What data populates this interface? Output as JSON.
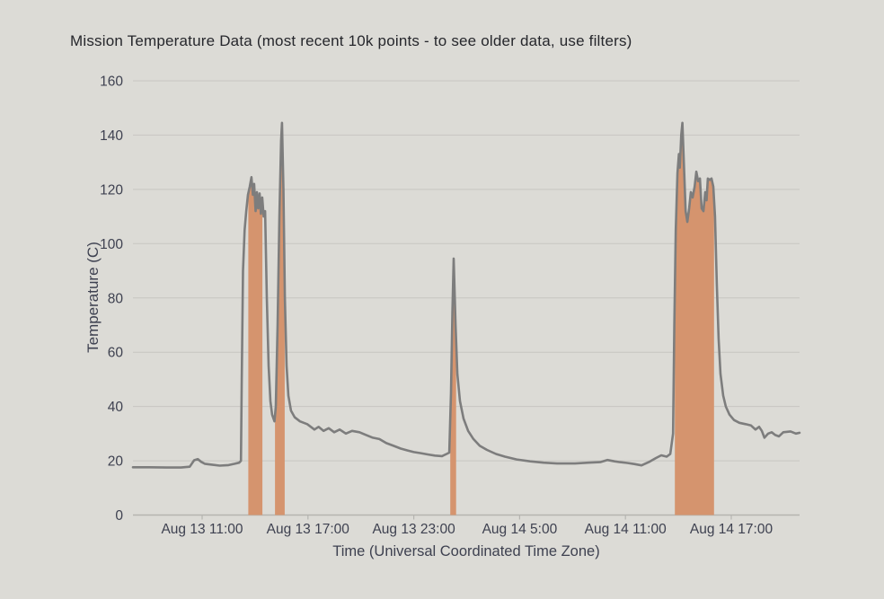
{
  "title": "Mission Temperature Data (most recent 10k points - to see older data, use filters)",
  "colors": {
    "background": "#dcdbd6",
    "line": "#7d7d7d",
    "highlight": "#d5946e",
    "grid": "#c7c6c1",
    "axis_line": "#b5b4b0",
    "tick_text": "#3e4150",
    "title_text": "#26272c"
  },
  "chart_data": {
    "type": "line",
    "title": "Mission Temperature Data (most recent 10k points - to see older data, use filters)",
    "xlabel": "Time (Universal Coordinated Time Zone)",
    "ylabel": "Temperature (C)",
    "ylim": [
      0,
      160
    ],
    "y_ticks": [
      0,
      20,
      40,
      60,
      80,
      100,
      120,
      140,
      160
    ],
    "x_ticks": [
      {
        "t": 11,
        "label": "Aug 13 11:00"
      },
      {
        "t": 17,
        "label": "Aug 13 17:00"
      },
      {
        "t": 23,
        "label": "Aug 13 23:00"
      },
      {
        "t": 29,
        "label": "Aug 14 5:00"
      },
      {
        "t": 35,
        "label": "Aug 14 11:00"
      },
      {
        "t": 41,
        "label": "Aug 14 17:00"
      }
    ],
    "x_unit": "hours since Aug 13 00:00 UTC",
    "x_range": [
      7.08,
      44.87
    ],
    "grid": "horizontal",
    "legend": "none",
    "series": [
      {
        "name": "temperature",
        "points": [
          [
            7.08,
            17.6
          ],
          [
            8.0,
            17.6
          ],
          [
            9.0,
            17.5
          ],
          [
            9.8,
            17.5
          ],
          [
            10.3,
            17.8
          ],
          [
            10.55,
            20.2
          ],
          [
            10.75,
            20.6
          ],
          [
            10.95,
            19.6
          ],
          [
            11.15,
            18.9
          ],
          [
            11.5,
            18.6
          ],
          [
            12.0,
            18.2
          ],
          [
            12.5,
            18.4
          ],
          [
            12.85,
            18.9
          ],
          [
            13.1,
            19.3
          ],
          [
            13.2,
            20.0
          ],
          [
            13.25,
            50.0
          ],
          [
            13.32,
            90.0
          ],
          [
            13.41,
            105.0
          ],
          [
            13.5,
            112.0
          ],
          [
            13.6,
            118.0
          ],
          [
            13.7,
            121.0
          ],
          [
            13.8,
            124.5
          ],
          [
            13.88,
            118.0
          ],
          [
            13.95,
            122.0
          ],
          [
            14.03,
            112.0
          ],
          [
            14.11,
            119.0
          ],
          [
            14.18,
            113.0
          ],
          [
            14.26,
            118.5
          ],
          [
            14.33,
            111.0
          ],
          [
            14.41,
            117.0
          ],
          [
            14.49,
            110.0
          ],
          [
            14.57,
            112.0
          ],
          [
            14.67,
            80.0
          ],
          [
            14.77,
            55.0
          ],
          [
            14.87,
            42.0
          ],
          [
            14.97,
            37.0
          ],
          [
            15.1,
            34.5
          ],
          [
            15.18,
            40.0
          ],
          [
            15.28,
            70.0
          ],
          [
            15.38,
            110.0
          ],
          [
            15.48,
            138.0
          ],
          [
            15.53,
            144.5
          ],
          [
            15.61,
            120.0
          ],
          [
            15.69,
            80.0
          ],
          [
            15.79,
            55.0
          ],
          [
            15.89,
            44.0
          ],
          [
            16.04,
            38.5
          ],
          [
            16.25,
            36.0
          ],
          [
            16.55,
            34.5
          ],
          [
            16.96,
            33.5
          ],
          [
            17.37,
            31.5
          ],
          [
            17.6,
            32.5
          ],
          [
            17.88,
            31.0
          ],
          [
            18.18,
            32.0
          ],
          [
            18.49,
            30.5
          ],
          [
            18.8,
            31.5
          ],
          [
            19.15,
            30.0
          ],
          [
            19.5,
            31.0
          ],
          [
            19.92,
            30.5
          ],
          [
            20.3,
            29.5
          ],
          [
            20.68,
            28.5
          ],
          [
            21.05,
            28.0
          ],
          [
            21.44,
            26.5
          ],
          [
            21.85,
            25.5
          ],
          [
            22.26,
            24.5
          ],
          [
            22.65,
            23.8
          ],
          [
            23.0,
            23.2
          ],
          [
            23.4,
            22.8
          ],
          [
            23.82,
            22.3
          ],
          [
            24.2,
            21.9
          ],
          [
            24.6,
            21.7
          ],
          [
            24.86,
            22.5
          ],
          [
            25.01,
            23.0
          ],
          [
            25.11,
            45.0
          ],
          [
            25.19,
            75.0
          ],
          [
            25.26,
            94.5
          ],
          [
            25.37,
            70.0
          ],
          [
            25.47,
            52.0
          ],
          [
            25.62,
            42.0
          ],
          [
            25.82,
            35.5
          ],
          [
            26.08,
            31.0
          ],
          [
            26.38,
            28.0
          ],
          [
            26.74,
            25.5
          ],
          [
            27.15,
            24.0
          ],
          [
            27.66,
            22.5
          ],
          [
            28.17,
            21.5
          ],
          [
            28.83,
            20.5
          ],
          [
            29.59,
            19.8
          ],
          [
            30.36,
            19.3
          ],
          [
            31.12,
            19.0
          ],
          [
            32.14,
            19.0
          ],
          [
            32.9,
            19.3
          ],
          [
            33.57,
            19.5
          ],
          [
            33.97,
            20.3
          ],
          [
            34.38,
            19.8
          ],
          [
            34.69,
            19.5
          ],
          [
            35.1,
            19.2
          ],
          [
            35.5,
            18.8
          ],
          [
            35.91,
            18.3
          ],
          [
            36.32,
            19.5
          ],
          [
            36.73,
            21.0
          ],
          [
            37.03,
            22.0
          ],
          [
            37.34,
            21.5
          ],
          [
            37.54,
            22.5
          ],
          [
            37.7,
            30.0
          ],
          [
            37.77,
            70.0
          ],
          [
            37.85,
            105.0
          ],
          [
            37.95,
            126.0
          ],
          [
            38.03,
            133.0
          ],
          [
            38.08,
            128.0
          ],
          [
            38.16,
            140.0
          ],
          [
            38.23,
            144.5
          ],
          [
            38.31,
            130.0
          ],
          [
            38.41,
            112.0
          ],
          [
            38.51,
            108.0
          ],
          [
            38.61,
            113.0
          ],
          [
            38.71,
            119.0
          ],
          [
            38.81,
            117.0
          ],
          [
            38.92,
            121.0
          ],
          [
            39.02,
            126.5
          ],
          [
            39.12,
            123.0
          ],
          [
            39.22,
            124.0
          ],
          [
            39.32,
            113.0
          ],
          [
            39.42,
            112.0
          ],
          [
            39.52,
            119.0
          ],
          [
            39.6,
            116.0
          ],
          [
            39.67,
            124.0
          ],
          [
            39.78,
            123.5
          ],
          [
            39.88,
            124.0
          ],
          [
            39.98,
            121.0
          ],
          [
            40.08,
            110.0
          ],
          [
            40.18,
            85.0
          ],
          [
            40.28,
            65.0
          ],
          [
            40.39,
            52.0
          ],
          [
            40.54,
            44.0
          ],
          [
            40.69,
            40.0
          ],
          [
            40.9,
            37.0
          ],
          [
            41.15,
            35.0
          ],
          [
            41.46,
            34.0
          ],
          [
            41.81,
            33.5
          ],
          [
            42.12,
            33.0
          ],
          [
            42.37,
            31.5
          ],
          [
            42.58,
            32.5
          ],
          [
            42.73,
            31.0
          ],
          [
            42.88,
            28.5
          ],
          [
            43.09,
            30.0
          ],
          [
            43.29,
            30.5
          ],
          [
            43.49,
            29.5
          ],
          [
            43.7,
            29.0
          ],
          [
            43.95,
            30.5
          ],
          [
            44.36,
            30.8
          ],
          [
            44.66,
            30.0
          ],
          [
            44.87,
            30.3
          ]
        ]
      }
    ],
    "highlight_regions": {
      "description": "area filled under curve down to 0",
      "ranges": [
        [
          13.62,
          14.42
        ],
        [
          15.13,
          15.68
        ],
        [
          25.07,
          25.4
        ],
        [
          37.8,
          40.02
        ]
      ]
    }
  }
}
